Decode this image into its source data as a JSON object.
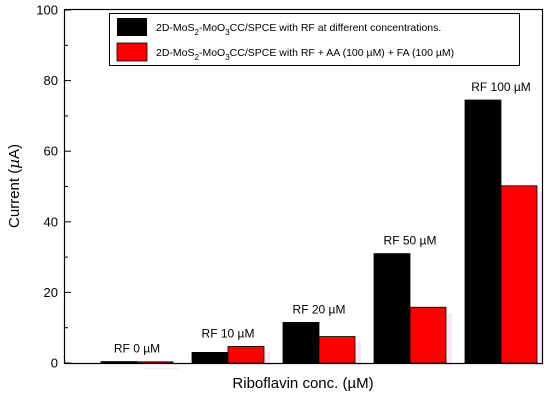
{
  "chart_data": {
    "type": "bar",
    "ylabel_main": "Current (",
    "ylabel_mu": "µ",
    "ylabel_end": "A)",
    "xlabel": "Riboflavin conc. (µM)",
    "ylim": [
      0,
      100
    ],
    "yticks": [
      "0",
      "20",
      "40",
      "60",
      "80",
      "100"
    ],
    "grid": false,
    "legend_position": "top-right",
    "categories": [
      "RF 0 µM",
      "RF 10 µM",
      "RF 20 µM",
      "RF 50 µM",
      "RF 100 µM"
    ],
    "series": [
      {
        "legend": {
          "prefix": "2D-MoS",
          "s1": "2",
          "mid": "-MoO",
          "s2": "3",
          "suffix": "CC/SPCE with RF at different concentrations."
        },
        "color": "#000000",
        "values": [
          0.4,
          3.0,
          11.5,
          31.0,
          74.5
        ]
      },
      {
        "legend": {
          "prefix": "2D-MoS",
          "s1": "2",
          "mid": "-MoO",
          "s2": "3",
          "suffix": "CC/SPCE with RF  + AA (100 µM) + FA (100 µM)"
        },
        "color": "#ff0000",
        "values": [
          0.3,
          4.7,
          7.5,
          15.8,
          50.2
        ]
      }
    ]
  }
}
